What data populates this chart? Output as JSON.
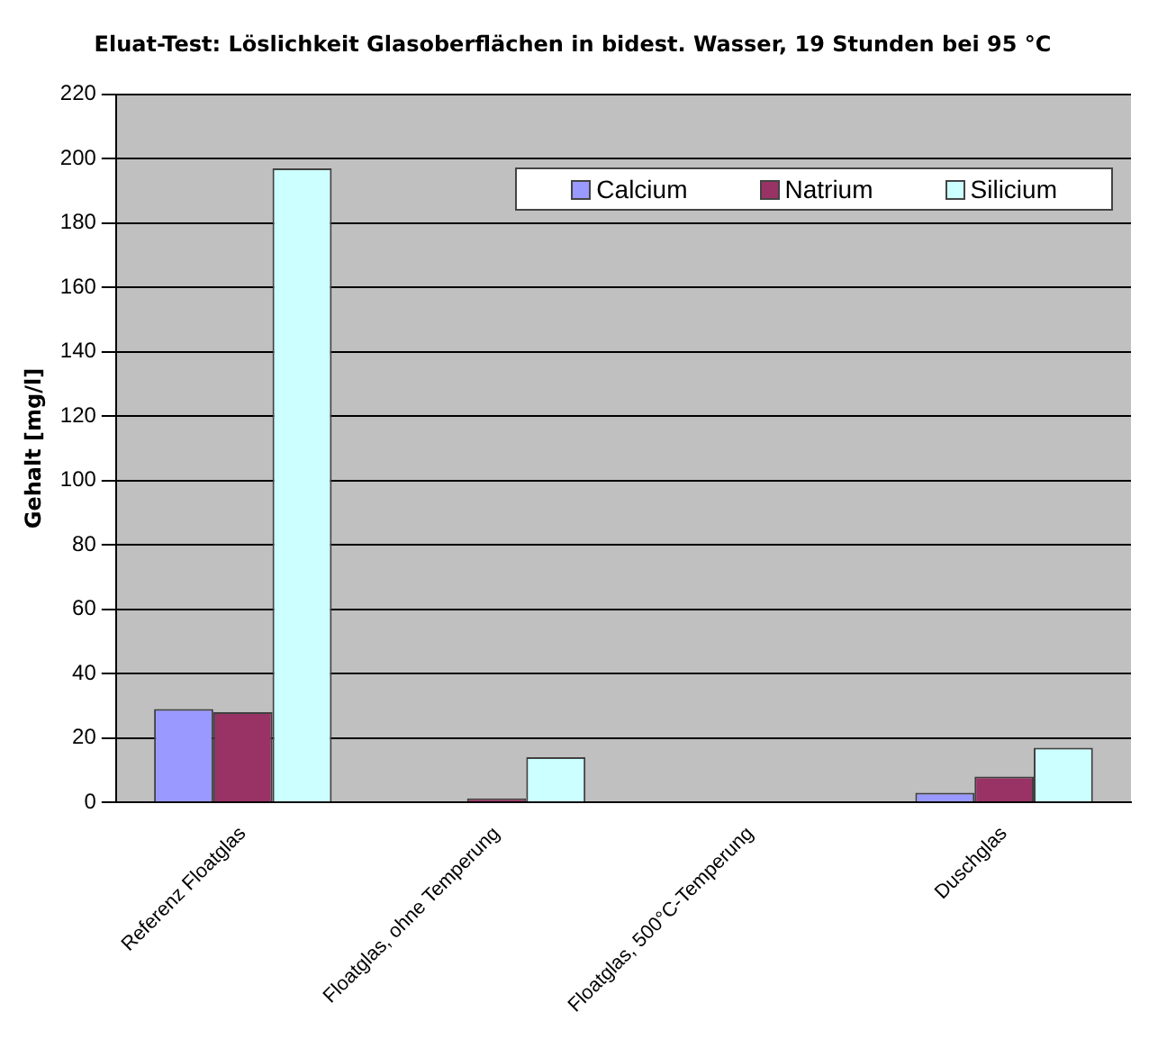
{
  "chart_data": {
    "type": "bar",
    "title": "Eluat-Test: Löslichkeit Glasoberflächen in bidest. Wasser, 19 Stunden bei 95 °C",
    "ylabel": "Gehalt [mg/l]",
    "categories": [
      "Referenz Floatglas",
      "Floatglas, ohne Temperung",
      "Floatglas, 500°C-Temperung",
      "Duschglas"
    ],
    "series": [
      {
        "name": "Calcium",
        "color": "#9999ff",
        "values": [
          29,
          null,
          null,
          3
        ]
      },
      {
        "name": "Natrium",
        "color": "#993366",
        "values": [
          28,
          1.2,
          null,
          8
        ]
      },
      {
        "name": "Silicium",
        "color": "#ccffff",
        "values": [
          197,
          14,
          null,
          17
        ]
      }
    ],
    "ylim": [
      0,
      220
    ],
    "yticks": [
      0,
      20,
      40,
      60,
      80,
      100,
      120,
      140,
      160,
      180,
      200,
      220
    ],
    "grid": "y",
    "legend": "top right"
  }
}
